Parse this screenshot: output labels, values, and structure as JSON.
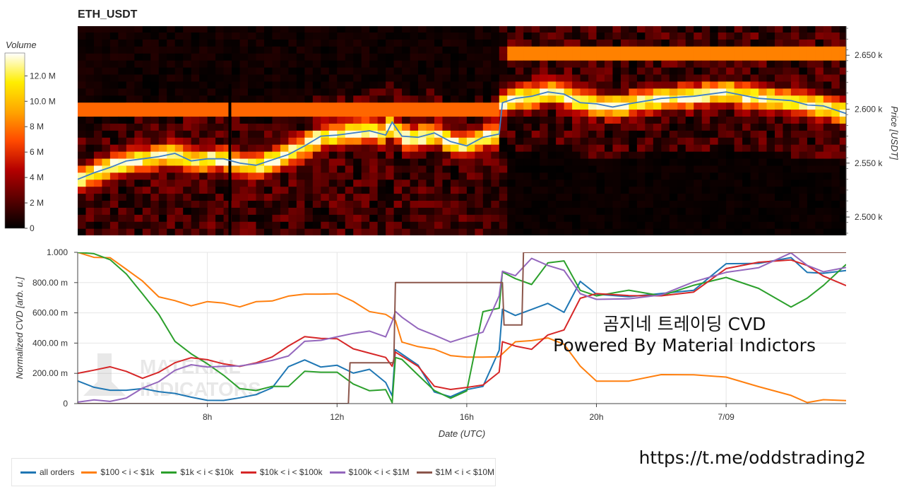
{
  "chart_data": [
    {
      "type": "heatmap",
      "title": "ETH_USDT",
      "colorbar": {
        "label": "Volume",
        "ticks": [
          "0",
          "2 M",
          "4 M",
          "6 M",
          "8 M",
          "10.0 M",
          "12.0 M"
        ],
        "values": [
          0,
          2000000,
          4000000,
          6000000,
          8000000,
          10000000,
          12000000
        ],
        "range": [
          0,
          13800000
        ],
        "colormap": [
          "#000000",
          "#5a0000",
          "#b40000",
          "#ff4a00",
          "#ffa600",
          "#ffee00",
          "#ffffff"
        ]
      },
      "ylabel": "Price [USDT]",
      "yticks": [
        "2.500 k",
        "2.550 k",
        "2.600 k",
        "2.650 k"
      ],
      "ytick_values": [
        2500,
        2550,
        2600,
        2650
      ],
      "ylim": [
        2483,
        2677
      ],
      "xlim": [
        4.0,
        27.7
      ],
      "time_step_hours": 0.25,
      "price_step": 6.5,
      "price_line": {
        "color": "#3d7fc9",
        "x": [
          4.0,
          4.5,
          5.0,
          5.5,
          6.0,
          6.5,
          7.0,
          7.5,
          8.0,
          8.5,
          9.0,
          9.5,
          10.0,
          10.5,
          11.0,
          11.5,
          12.0,
          12.5,
          13.0,
          13.5,
          13.7,
          14.0,
          14.5,
          15.0,
          15.5,
          16.0,
          16.5,
          17.0,
          17.1,
          17.5,
          18.0,
          18.5,
          19.0,
          19.5,
          20.0,
          20.5,
          21.0,
          22.0,
          23.0,
          24.0,
          25.0,
          26.0,
          26.5,
          27.0,
          27.7
        ],
        "y": [
          2535,
          2541,
          2546,
          2552,
          2554,
          2556,
          2559,
          2552,
          2554,
          2554,
          2550,
          2548,
          2553,
          2558,
          2566,
          2575,
          2576,
          2578,
          2580,
          2576,
          2588,
          2575,
          2574,
          2578,
          2570,
          2566,
          2574,
          2577,
          2606,
          2610,
          2612,
          2616,
          2614,
          2606,
          2605,
          2602,
          2605,
          2610,
          2612,
          2616,
          2610,
          2608,
          2604,
          2603,
          2596
        ]
      }
    },
    {
      "type": "line",
      "xlabel": "Date (UTC)",
      "ylabel": "Normalized CVD [arb. u.]",
      "ylim": [
        0,
        1.0
      ],
      "xlim": [
        4.0,
        27.7
      ],
      "yticks": [
        "0",
        "200.00 m",
        "400.00 m",
        "600.00 m",
        "800.00 m",
        "1.000"
      ],
      "ytick_values": [
        0,
        0.2,
        0.4,
        0.6,
        0.8,
        1.0
      ],
      "xticks": [
        "8h",
        "12h",
        "16h",
        "20h",
        "7/09"
      ],
      "xtick_values": [
        8,
        12,
        16,
        20,
        24
      ],
      "grid": true,
      "legend_position": "bottom",
      "series": [
        {
          "name": "all orders",
          "color": "#1f77b4",
          "x": [
            4.0,
            4.5,
            5.0,
            5.5,
            6.0,
            6.5,
            7.0,
            7.5,
            8.0,
            8.5,
            9.0,
            9.5,
            10.0,
            10.5,
            11.0,
            11.5,
            12.0,
            12.5,
            13.0,
            13.5,
            13.7,
            13.8,
            14.0,
            14.5,
            15.0,
            15.5,
            16.0,
            16.5,
            17.0,
            17.1,
            17.5,
            18.0,
            18.5,
            19.0,
            19.5,
            20.0,
            21.0,
            22.0,
            23.0,
            24.0,
            25.0,
            26.0,
            26.5,
            27.0,
            27.7
          ],
          "y": [
            0.15,
            0.12,
            0.1,
            0.08,
            0.09,
            0.07,
            0.06,
            0.04,
            0.02,
            0.01,
            0.03,
            0.05,
            0.1,
            0.25,
            0.28,
            0.25,
            0.26,
            0.2,
            0.22,
            0.15,
            0.05,
            0.35,
            0.32,
            0.25,
            0.08,
            0.06,
            0.1,
            0.12,
            0.35,
            0.62,
            0.58,
            0.63,
            0.65,
            0.6,
            0.8,
            0.72,
            0.72,
            0.72,
            0.75,
            0.92,
            0.93,
            0.95,
            0.88,
            0.85,
            0.88
          ]
        },
        {
          "name": "$100 < i < $1k",
          "color": "#ff7f0e",
          "x": [
            4.0,
            4.5,
            5.0,
            5.5,
            6.0,
            6.5,
            7.0,
            7.5,
            8.0,
            8.5,
            9.0,
            9.5,
            10.0,
            10.5,
            11.0,
            11.5,
            12.0,
            12.5,
            13.0,
            13.5,
            13.8,
            14.0,
            14.5,
            15.0,
            15.5,
            16.0,
            16.5,
            17.0,
            17.5,
            18.0,
            18.5,
            19.0,
            19.5,
            20.0,
            21.0,
            22.0,
            23.0,
            24.0,
            25.0,
            26.0,
            26.5,
            27.0,
            27.7
          ],
          "y": [
            1.0,
            0.97,
            0.95,
            0.88,
            0.8,
            0.72,
            0.68,
            0.66,
            0.67,
            0.66,
            0.65,
            0.66,
            0.68,
            0.7,
            0.72,
            0.73,
            0.74,
            0.68,
            0.62,
            0.58,
            0.55,
            0.4,
            0.38,
            0.35,
            0.32,
            0.3,
            0.31,
            0.32,
            0.4,
            0.42,
            0.43,
            0.4,
            0.25,
            0.15,
            0.16,
            0.18,
            0.2,
            0.19,
            0.12,
            0.05,
            0.0,
            0.02,
            0.02
          ]
        },
        {
          "name": "$1k < i < $10k",
          "color": "#2ca02c",
          "x": [
            4.0,
            4.5,
            5.0,
            5.5,
            6.0,
            6.5,
            7.0,
            7.5,
            8.0,
            8.5,
            9.0,
            9.5,
            10.0,
            10.5,
            11.0,
            11.5,
            12.0,
            12.5,
            13.0,
            13.5,
            13.7,
            13.8,
            14.0,
            14.5,
            15.0,
            15.5,
            16.0,
            16.5,
            17.0,
            17.1,
            17.5,
            18.0,
            18.5,
            19.0,
            19.5,
            20.0,
            21.0,
            22.0,
            23.0,
            24.0,
            25.0,
            26.0,
            26.5,
            27.0,
            27.7
          ],
          "y": [
            1.0,
            0.98,
            0.95,
            0.85,
            0.72,
            0.58,
            0.42,
            0.32,
            0.26,
            0.18,
            0.1,
            0.08,
            0.1,
            0.12,
            0.22,
            0.2,
            0.22,
            0.12,
            0.1,
            0.08,
            0.0,
            0.3,
            0.28,
            0.2,
            0.1,
            0.05,
            0.08,
            0.6,
            0.62,
            0.88,
            0.82,
            0.8,
            0.92,
            0.95,
            0.75,
            0.72,
            0.75,
            0.72,
            0.78,
            0.82,
            0.76,
            0.65,
            0.7,
            0.78,
            0.92
          ]
        },
        {
          "name": "$10k < i < $100k",
          "color": "#d62728",
          "x": [
            4.0,
            4.5,
            5.0,
            5.5,
            6.0,
            6.5,
            7.0,
            7.5,
            8.0,
            8.5,
            9.0,
            9.5,
            10.0,
            10.5,
            11.0,
            11.5,
            12.0,
            12.5,
            13.0,
            13.5,
            13.7,
            13.8,
            14.0,
            14.5,
            15.0,
            15.5,
            16.0,
            16.5,
            17.0,
            17.1,
            17.5,
            18.0,
            18.5,
            19.0,
            19.5,
            20.0,
            21.0,
            22.0,
            23.0,
            24.0,
            25.0,
            26.0,
            26.5,
            27.0,
            27.7
          ],
          "y": [
            0.2,
            0.22,
            0.24,
            0.2,
            0.18,
            0.2,
            0.28,
            0.3,
            0.28,
            0.26,
            0.25,
            0.28,
            0.3,
            0.38,
            0.45,
            0.42,
            0.43,
            0.35,
            0.32,
            0.3,
            0.26,
            0.35,
            0.32,
            0.25,
            0.12,
            0.08,
            0.1,
            0.12,
            0.2,
            0.4,
            0.38,
            0.35,
            0.45,
            0.5,
            0.7,
            0.72,
            0.72,
            0.7,
            0.75,
            0.9,
            0.92,
            0.95,
            0.92,
            0.84,
            0.78
          ]
        },
        {
          "name": "$100k < i < $1M",
          "color": "#9467bd",
          "x": [
            4.0,
            4.5,
            5.0,
            5.5,
            6.0,
            6.5,
            7.0,
            7.5,
            8.0,
            8.5,
            9.0,
            9.5,
            10.0,
            10.5,
            11.0,
            11.5,
            12.0,
            12.5,
            13.0,
            13.5,
            13.7,
            13.8,
            14.0,
            14.5,
            15.0,
            15.5,
            16.0,
            16.5,
            17.0,
            17.1,
            17.5,
            18.0,
            18.5,
            19.0,
            19.5,
            20.0,
            21.0,
            22.0,
            23.0,
            24.0,
            25.0,
            26.0,
            26.5,
            27.0,
            27.7
          ],
          "y": [
            0.01,
            0.01,
            0.01,
            0.05,
            0.1,
            0.15,
            0.22,
            0.25,
            0.24,
            0.25,
            0.25,
            0.26,
            0.28,
            0.32,
            0.4,
            0.42,
            0.45,
            0.46,
            0.47,
            0.45,
            0.55,
            0.62,
            0.58,
            0.5,
            0.45,
            0.42,
            0.45,
            0.48,
            0.7,
            0.88,
            0.85,
            0.95,
            0.92,
            0.88,
            0.72,
            0.7,
            0.7,
            0.72,
            0.8,
            0.88,
            0.9,
            1.0,
            0.92,
            0.88,
            0.9
          ]
        },
        {
          "name": "$1M < i < $10M",
          "color": "#8c564b",
          "x": [
            4.0,
            12.35,
            12.4,
            13.75,
            13.8,
            17.1,
            17.15,
            17.7,
            17.75,
            27.7
          ],
          "y": [
            0.0,
            0.0,
            0.27,
            0.27,
            0.8,
            0.8,
            0.52,
            0.52,
            1.0,
            1.0
          ]
        }
      ]
    }
  ],
  "overlay": {
    "line1": "곰지네 트레이딩 CVD",
    "line2": "Powered By Material Indictors",
    "url": "https://t.me/oddstrading2",
    "logo_text_line1": "MATERIAL",
    "logo_text_line2": "INDICATORS"
  }
}
